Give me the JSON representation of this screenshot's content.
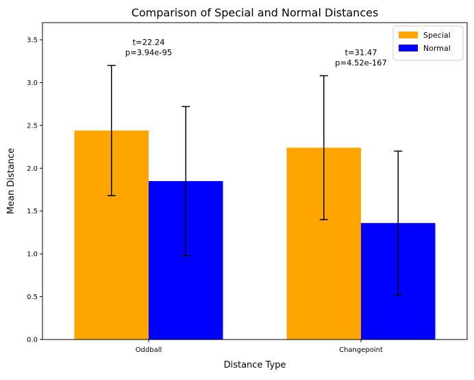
{
  "chart_data": {
    "type": "bar",
    "title": "Comparison of Special and Normal Distances",
    "xlabel": "Distance Type",
    "ylabel": "Mean Distance",
    "categories": [
      "Oddball",
      "Changepoint"
    ],
    "ylim": [
      0,
      3.7
    ],
    "yticks": [
      "0.0",
      "0.5",
      "1.0",
      "1.5",
      "2.0",
      "2.5",
      "3.0",
      "3.5"
    ],
    "grid": false,
    "legend_position": "top-right",
    "series": [
      {
        "name": "Special",
        "color": "#FFA500",
        "values": [
          2.44,
          2.24
        ],
        "error": [
          0.76,
          0.84
        ]
      },
      {
        "name": "Normal",
        "color": "#0000FF",
        "values": [
          1.85,
          1.36
        ],
        "error": [
          0.87,
          0.84
        ]
      }
    ],
    "annotations": [
      {
        "line1": "t=22.24",
        "line2": "p=3.94e-95"
      },
      {
        "line1": "t=31.47",
        "line2": "p=4.52e-167"
      }
    ]
  }
}
